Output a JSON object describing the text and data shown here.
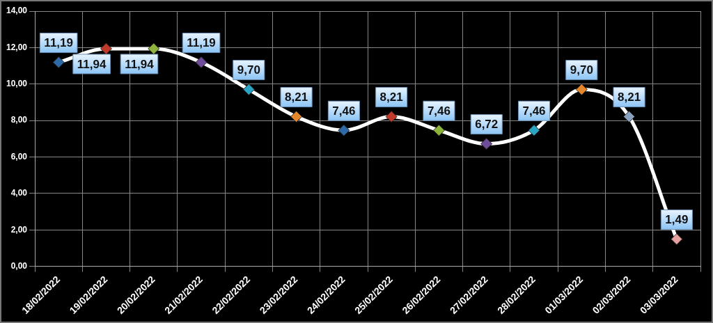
{
  "chart_data": {
    "type": "line",
    "categories": [
      "18/02/2022",
      "19/02/2022",
      "20/02/2022",
      "21/02/2022",
      "22/02/2022",
      "23/02/2022",
      "24/02/2022",
      "25/02/2022",
      "26/02/2022",
      "27/02/2022",
      "28/02/2022",
      "01/03/2022",
      "02/03/2022",
      "03/03/2022"
    ],
    "series": [
      {
        "color": "#ffffff",
        "colors": [
          "#2e6aa8",
          "#c0392b",
          "#8db33a",
          "#6e4c9a",
          "#2aa5c4",
          "#e5862b",
          "#2e6aa8",
          "#c0392b",
          "#8db33a",
          "#6e4c9a",
          "#2aa5c4",
          "#e5862b",
          "#8aa0bf",
          "#e6a0a0"
        ],
        "values": [
          11.19,
          11.94,
          11.94,
          11.19,
          9.7,
          8.21,
          7.46,
          8.21,
          7.46,
          6.72,
          7.46,
          9.7,
          8.21,
          1.49
        ],
        "value_labels": [
          "11,19",
          "11,94",
          "11,94",
          "11,19",
          "9,70",
          "8,21",
          "7,46",
          "8,21",
          "7,46",
          "6,72",
          "7,46",
          "9,70",
          "8,21",
          "1,49"
        ]
      }
    ],
    "ylim": [
      0,
      14
    ],
    "yticks": [
      {
        "value": 0,
        "label": "0,00"
      },
      {
        "value": 2,
        "label": "2,00"
      },
      {
        "value": 4,
        "label": "4,00"
      },
      {
        "value": 6,
        "label": "6,00"
      },
      {
        "value": 8,
        "label": "8,00"
      },
      {
        "value": 10,
        "label": "10,00"
      },
      {
        "value": 12,
        "label": "12,00"
      },
      {
        "value": 14,
        "label": "14,00"
      }
    ],
    "grid": true,
    "legend": false,
    "marker": "diamond",
    "line_style": "solid"
  }
}
